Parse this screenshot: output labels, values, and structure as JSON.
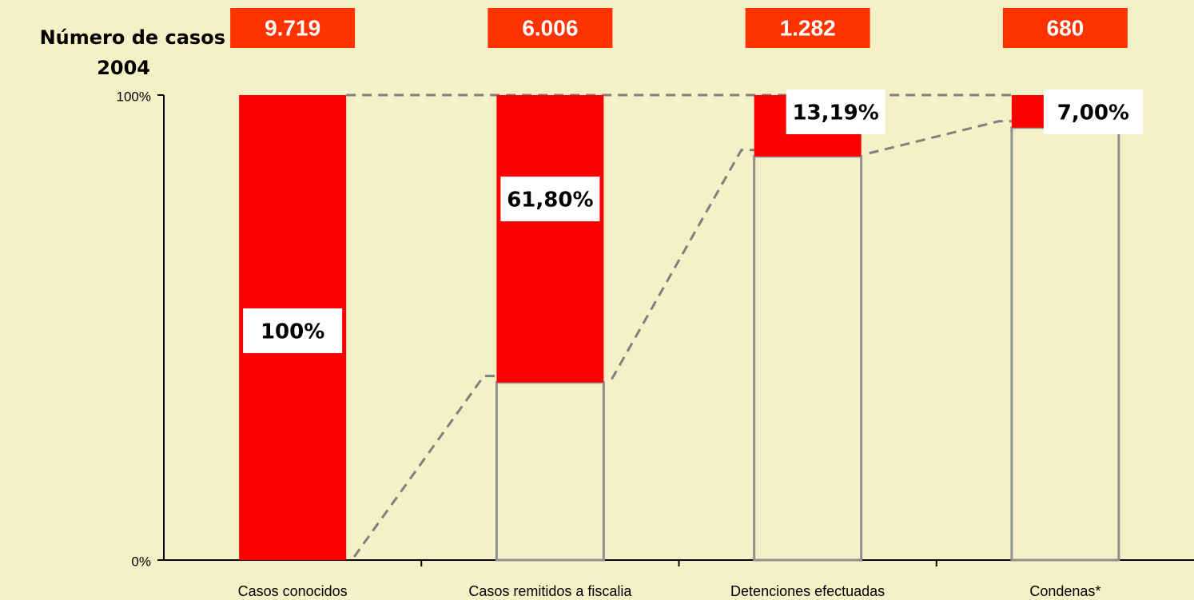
{
  "chart_data": {
    "type": "bar",
    "categories": [
      "Casos conocidos",
      "Casos remitidos a fiscalia",
      "Detenciones efectuadas",
      "Condenas*"
    ],
    "values": [
      100,
      61.8,
      13.19,
      7
    ],
    "value_labels": [
      "100%",
      "61,80%",
      "13,19%",
      "7,00%"
    ],
    "color": "#ff0000",
    "counts_title": [
      "Número de casos",
      "2004"
    ],
    "counts": {
      "values": [
        9719,
        6006,
        1282,
        680
      ],
      "value_labels": [
        "9.719",
        "6.006",
        "1.282",
        "680"
      ],
      "color": "#ff3300"
    },
    "ylim": [
      0,
      100
    ],
    "yticks": [
      {
        "value": 0,
        "label": "0%"
      },
      {
        "value": 100,
        "label": "100%"
      }
    ]
  }
}
